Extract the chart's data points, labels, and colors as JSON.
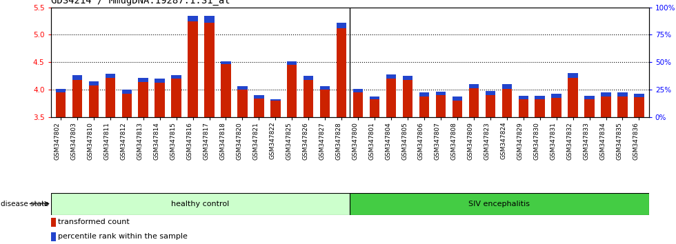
{
  "title": "GDS4214 / MmugDNA.19287.1.S1_at",
  "categories": [
    "GSM347802",
    "GSM347803",
    "GSM347810",
    "GSM347811",
    "GSM347812",
    "GSM347813",
    "GSM347814",
    "GSM347815",
    "GSM347816",
    "GSM347817",
    "GSM347818",
    "GSM347820",
    "GSM347821",
    "GSM347822",
    "GSM347825",
    "GSM347826",
    "GSM347827",
    "GSM347828",
    "GSM347800",
    "GSM347801",
    "GSM347804",
    "GSM347805",
    "GSM347806",
    "GSM347807",
    "GSM347808",
    "GSM347809",
    "GSM347823",
    "GSM347824",
    "GSM347829",
    "GSM347830",
    "GSM347831",
    "GSM347832",
    "GSM347833",
    "GSM347834",
    "GSM347835",
    "GSM347836"
  ],
  "red_values": [
    3.95,
    4.18,
    4.08,
    4.22,
    3.93,
    4.14,
    4.13,
    4.2,
    5.25,
    5.22,
    4.46,
    4.0,
    3.84,
    3.8,
    4.45,
    4.18,
    4.0,
    5.12,
    3.95,
    3.83,
    4.2,
    4.18,
    3.88,
    3.9,
    3.8,
    4.03,
    3.9,
    4.02,
    3.82,
    3.82,
    3.85,
    4.22,
    3.82,
    3.88,
    3.88,
    3.86
  ],
  "blue_values": [
    0.07,
    0.08,
    0.07,
    0.07,
    0.07,
    0.07,
    0.07,
    0.07,
    0.1,
    0.12,
    0.05,
    0.07,
    0.06,
    0.03,
    0.07,
    0.07,
    0.07,
    0.1,
    0.07,
    0.05,
    0.08,
    0.07,
    0.07,
    0.06,
    0.07,
    0.07,
    0.07,
    0.08,
    0.07,
    0.07,
    0.07,
    0.08,
    0.07,
    0.07,
    0.07,
    0.07
  ],
  "healthy_count": 18,
  "siv_count": 18,
  "y_min": 3.5,
  "y_max": 5.5,
  "y_ticks_left": [
    3.5,
    4.0,
    4.5,
    5.0,
    5.5
  ],
  "y_ticks_right": [
    0,
    25,
    50,
    75,
    100
  ],
  "right_y_labels": [
    "0%",
    "25%",
    "50%",
    "75%",
    "100%"
  ],
  "bar_color_red": "#cc2200",
  "bar_color_blue": "#2244cc",
  "healthy_bg": "#ccffcc",
  "siv_bg": "#44cc44",
  "healthy_label": "healthy control",
  "siv_label": "SIV encephalitis",
  "disease_state_label": "disease state",
  "legend_red_label": "transformed count",
  "legend_blue_label": "percentile rank within the sample",
  "title_fontsize": 10,
  "tick_fontsize": 6.5,
  "label_fontsize": 8,
  "bar_width": 0.6
}
